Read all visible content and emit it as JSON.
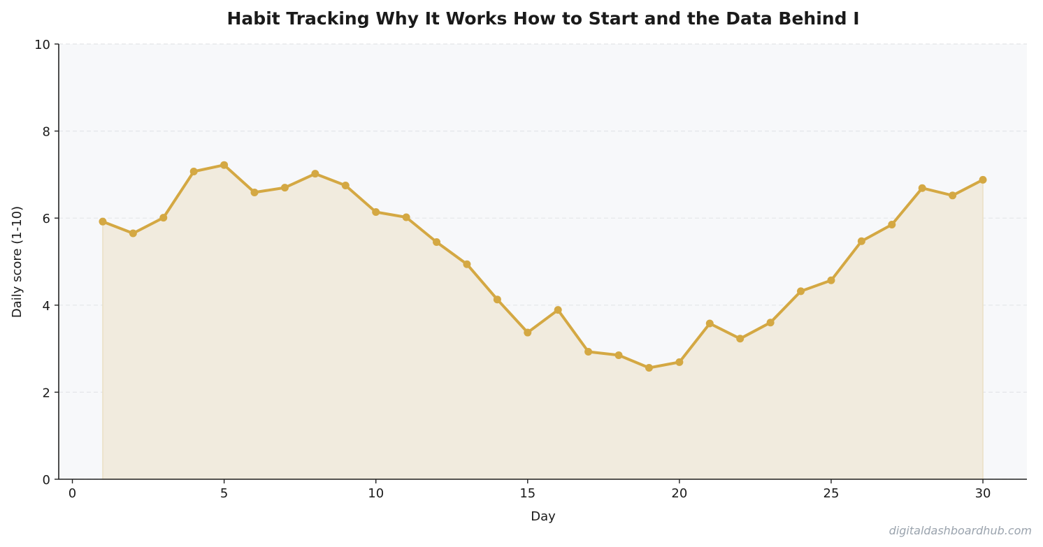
{
  "colors": {
    "line": "#d4a843",
    "fill": "#f1ebde",
    "plot_background": "#f7f8fa",
    "grid": "#e3e5e8",
    "axis": "#222222"
  },
  "watermark": "digitaldashboardhub.com",
  "chart_data": {
    "type": "area",
    "title": "Habit Tracking  Why It Works  How to Start  and the Data Behind I",
    "xlabel": "Day",
    "ylabel": "Daily score (1-10)",
    "xlim": [
      -0.45,
      31.45
    ],
    "ylim": [
      0,
      10
    ],
    "x_ticks": [
      0,
      5,
      10,
      15,
      20,
      25,
      30
    ],
    "y_ticks": [
      0,
      2,
      4,
      6,
      8,
      10
    ],
    "grid": "horizontal dashed",
    "series": [
      {
        "x": [
          1,
          2,
          3,
          4,
          5,
          6,
          7,
          8,
          9,
          10,
          11,
          12,
          13,
          14,
          15,
          16,
          17,
          18,
          19,
          20,
          21,
          22,
          23,
          24,
          25,
          26,
          27,
          28,
          29,
          30
        ],
        "values": [
          5.92,
          5.65,
          6.01,
          7.07,
          7.22,
          6.59,
          6.7,
          7.02,
          6.75,
          6.14,
          6.02,
          5.45,
          4.94,
          4.13,
          3.37,
          3.89,
          2.93,
          2.85,
          2.56,
          2.69,
          3.58,
          3.23,
          3.6,
          4.32,
          4.57,
          5.47,
          5.85,
          6.69,
          6.52,
          6.88
        ]
      }
    ]
  }
}
